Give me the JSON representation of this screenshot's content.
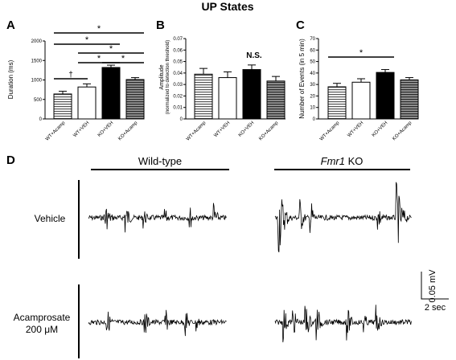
{
  "title": "UP States",
  "panels": {
    "A": {
      "letter": "A",
      "ylabel": "Duration (ms)",
      "yticks": [
        "0",
        "500",
        "1000",
        "1500",
        "2000"
      ],
      "ylim": [
        0,
        2000
      ],
      "categories": [
        "WT+Acamp",
        "WT+VEH",
        "KO+VEH",
        "KO+Acamp"
      ],
      "values": [
        640,
        820,
        1320,
        1010
      ],
      "errors": [
        70,
        80,
        60,
        50
      ],
      "sig": [
        "*",
        "*",
        "*",
        "*",
        "*"
      ],
      "dagger": "†"
    },
    "B": {
      "letter": "B",
      "ylabel_line1": "Amplitude",
      "ylabel_line2": "(normalized to detection threshold)",
      "yticks": [
        "0",
        "0.01",
        "0.02",
        "0.03",
        "0.04",
        "0.05",
        "0.06",
        "0.07"
      ],
      "ylim": [
        0,
        0.07
      ],
      "categories": [
        "WT+Acamp",
        "WT+VEH",
        "KO+VEH",
        "KO+Acamp"
      ],
      "values": [
        0.039,
        0.036,
        0.043,
        0.033
      ],
      "errors": [
        0.005,
        0.005,
        0.004,
        0.004
      ],
      "ns": "N.S."
    },
    "C": {
      "letter": "C",
      "ylabel": "Number of Events (in 5 min)",
      "yticks": [
        "0",
        "10",
        "20",
        "30",
        "40",
        "50",
        "60",
        "70"
      ],
      "ylim": [
        0,
        70
      ],
      "categories": [
        "WT+Acamp",
        "WT+VEH",
        "KO+VEH",
        "KO+Acamp"
      ],
      "values": [
        28,
        32,
        40.5,
        34
      ],
      "errors": [
        3,
        3,
        2.5,
        2
      ],
      "sig": "*"
    },
    "D": {
      "letter": "D",
      "col_wt": "Wild-type",
      "col_ko_italic": "Fmr1",
      "col_ko_rest": " KO",
      "row_vehicle": "Vehicle",
      "row_acamp_line1": "Acamprosate",
      "row_acamp_line2": "200 μM",
      "scale_v": "0.05 mV",
      "scale_t": "2 sec"
    }
  },
  "chart_data": [
    {
      "type": "bar",
      "title": "UP States",
      "categories": [
        "WT+Acamp",
        "WT+VEH",
        "KO+VEH",
        "KO+Acamp"
      ],
      "values": [
        640,
        820,
        1320,
        1010
      ],
      "ylabel": "Duration (ms)",
      "ylim": [
        0,
        2000
      ]
    },
    {
      "type": "bar",
      "categories": [
        "WT+Acamp",
        "WT+VEH",
        "KO+VEH",
        "KO+Acamp"
      ],
      "values": [
        0.039,
        0.036,
        0.043,
        0.033
      ],
      "ylabel": "Amplitude (normalized to detection threshold)",
      "ylim": [
        0,
        0.07
      ]
    },
    {
      "type": "bar",
      "categories": [
        "WT+Acamp",
        "WT+VEH",
        "KO+VEH",
        "KO+Acamp"
      ],
      "values": [
        28,
        32,
        40.5,
        34
      ],
      "ylabel": "Number of Events (in 5 min)",
      "ylim": [
        0,
        70
      ]
    }
  ]
}
